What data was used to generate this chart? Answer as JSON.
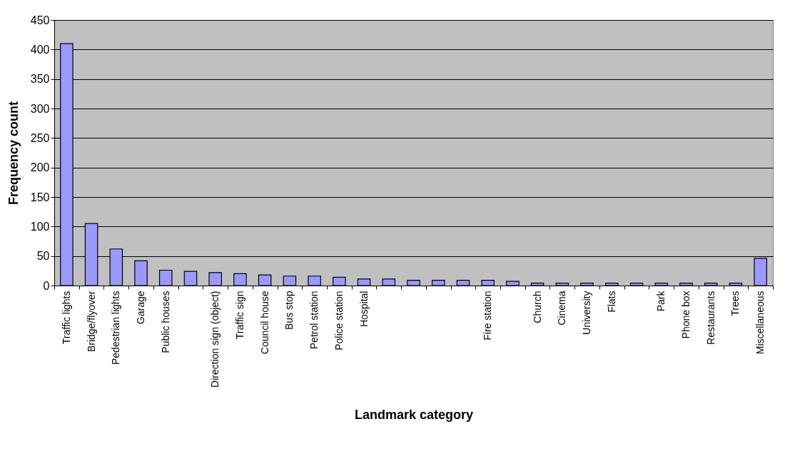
{
  "chart_data": {
    "type": "bar",
    "xlabel": "Landmark category",
    "ylabel": "Frequency count",
    "categories": [
      "Traffic lights",
      "Bridge/flyover",
      "Pedestrian lights",
      "Garage",
      "Public houses",
      null,
      "Direction sign (object)",
      "Traffic sign",
      "Council house",
      "Bus stop",
      "Petrol station",
      "Police station",
      "Hospital",
      null,
      null,
      null,
      null,
      "Fire station",
      null,
      "Church",
      "Cinema",
      "University",
      "Flats",
      null,
      "Park",
      "Phone box",
      "Restaurants",
      "Trees",
      "Miscellaneous"
    ],
    "values": [
      410,
      105,
      62,
      42,
      26,
      24,
      22,
      20,
      18,
      16,
      16,
      14,
      11,
      11,
      9,
      9,
      9,
      9,
      7,
      4,
      4,
      4,
      4,
      4,
      4,
      4,
      4,
      4,
      46
    ],
    "color": "#9999ff",
    "ylim": [
      0,
      450
    ],
    "yticks": [
      0,
      50,
      100,
      150,
      200,
      250,
      300,
      350,
      400,
      450
    ],
    "grid": "y"
  }
}
